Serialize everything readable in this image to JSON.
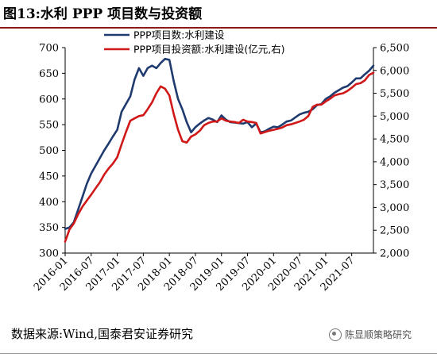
{
  "header": {
    "title": "图13:水利 PPP 项目数与投资额"
  },
  "footer": {
    "source": "数据来源:Wind,国泰君安证券研究",
    "watermark": "陈显顺策略研究"
  },
  "colors": {
    "series_count": "#1f3a6e",
    "series_investment": "#d01818",
    "title_rule": "#8a1a1a"
  },
  "chart_data": {
    "type": "line",
    "grid": false,
    "legend_position": "top-left",
    "x_ticks": [
      "2016-01",
      "2016-07",
      "2017-01",
      "2017-07",
      "2018-01",
      "2018-07",
      "2019-01",
      "2019-07",
      "2020-01",
      "2020-07",
      "2021-01",
      "2021-07"
    ],
    "x_range": [
      "2016-01",
      "2021-12"
    ],
    "left_axis": {
      "ylim": [
        300,
        700
      ],
      "ticks": [
        300,
        350,
        400,
        450,
        500,
        550,
        600,
        650,
        700
      ]
    },
    "right_axis": {
      "ylim": [
        2000,
        6500
      ],
      "ticks": [
        "2,000",
        "2,500",
        "3,000",
        "3,500",
        "4,000",
        "4,500",
        "5,000",
        "5,500",
        "6,000",
        "6,500"
      ]
    },
    "series": [
      {
        "name": "PPP项目数:水利建设",
        "axis": "left",
        "color": "#1f3a6e",
        "x": [
          "2016-01",
          "2016-02",
          "2016-03",
          "2016-04",
          "2016-05",
          "2016-06",
          "2016-07",
          "2016-08",
          "2016-09",
          "2016-10",
          "2016-11",
          "2016-12",
          "2017-01",
          "2017-02",
          "2017-03",
          "2017-04",
          "2017-05",
          "2017-06",
          "2017-07",
          "2017-08",
          "2017-09",
          "2017-10",
          "2017-11",
          "2017-12",
          "2018-01",
          "2018-02",
          "2018-03",
          "2018-04",
          "2018-05",
          "2018-06",
          "2018-07",
          "2018-08",
          "2018-09",
          "2018-10",
          "2018-11",
          "2018-12",
          "2019-01",
          "2019-02",
          "2019-03",
          "2019-04",
          "2019-05",
          "2019-06",
          "2019-07",
          "2019-08",
          "2019-09",
          "2019-10",
          "2019-11",
          "2019-12",
          "2020-01",
          "2020-02",
          "2020-03",
          "2020-04",
          "2020-05",
          "2020-06",
          "2020-07",
          "2020-08",
          "2020-09",
          "2020-10",
          "2020-11",
          "2020-12",
          "2021-01",
          "2021-02",
          "2021-03",
          "2021-04",
          "2021-05",
          "2021-06",
          "2021-07",
          "2021-08",
          "2021-09",
          "2021-10",
          "2021-11",
          "2021-12"
        ],
        "values": [
          347,
          350,
          360,
          385,
          410,
          435,
          455,
          470,
          485,
          500,
          513,
          527,
          540,
          575,
          590,
          605,
          638,
          660,
          645,
          660,
          665,
          660,
          670,
          678,
          676,
          635,
          600,
          580,
          555,
          535,
          545,
          552,
          558,
          563,
          560,
          555,
          568,
          560,
          555,
          554,
          553,
          552,
          555,
          545,
          552,
          535,
          537,
          542,
          546,
          545,
          550,
          556,
          558,
          564,
          570,
          573,
          575,
          580,
          588,
          590,
          600,
          605,
          612,
          617,
          622,
          625,
          632,
          640,
          640,
          648,
          655,
          665
        ]
      },
      {
        "name": "PPP项目投资额:水利建设(亿元,右)",
        "axis": "right",
        "color": "#d01818",
        "x": [
          "2016-01",
          "2016-02",
          "2016-03",
          "2016-04",
          "2016-05",
          "2016-06",
          "2016-07",
          "2016-08",
          "2016-09",
          "2016-10",
          "2016-11",
          "2016-12",
          "2017-01",
          "2017-02",
          "2017-03",
          "2017-04",
          "2017-05",
          "2017-06",
          "2017-07",
          "2017-08",
          "2017-09",
          "2017-10",
          "2017-11",
          "2017-12",
          "2018-01",
          "2018-02",
          "2018-03",
          "2018-04",
          "2018-05",
          "2018-06",
          "2018-07",
          "2018-08",
          "2018-09",
          "2018-10",
          "2018-11",
          "2018-12",
          "2019-01",
          "2019-02",
          "2019-03",
          "2019-04",
          "2019-05",
          "2019-06",
          "2019-07",
          "2019-08",
          "2019-09",
          "2019-10",
          "2019-11",
          "2019-12",
          "2020-01",
          "2020-02",
          "2020-03",
          "2020-04",
          "2020-05",
          "2020-06",
          "2020-07",
          "2020-08",
          "2020-09",
          "2020-10",
          "2020-11",
          "2020-12",
          "2021-01",
          "2021-02",
          "2021-03",
          "2021-04",
          "2021-05",
          "2021-06",
          "2021-07",
          "2021-08",
          "2021-09",
          "2021-10",
          "2021-11",
          "2021-12"
        ],
        "values": [
          2250,
          2520,
          2650,
          2850,
          3020,
          3150,
          3280,
          3420,
          3550,
          3720,
          3850,
          3960,
          4100,
          4380,
          4650,
          4900,
          4950,
          5000,
          5020,
          5150,
          5300,
          5500,
          5650,
          5600,
          5450,
          5050,
          4700,
          4450,
          4420,
          4550,
          4600,
          4680,
          4800,
          4850,
          4880,
          4880,
          4950,
          4900,
          4880,
          4870,
          4850,
          4920,
          4880,
          4870,
          4850,
          4620,
          4650,
          4680,
          4700,
          4720,
          4750,
          4800,
          4820,
          4850,
          4880,
          4920,
          5000,
          5200,
          5250,
          5250,
          5320,
          5380,
          5450,
          5480,
          5500,
          5550,
          5620,
          5700,
          5720,
          5780,
          5900,
          5950
        ]
      }
    ]
  }
}
